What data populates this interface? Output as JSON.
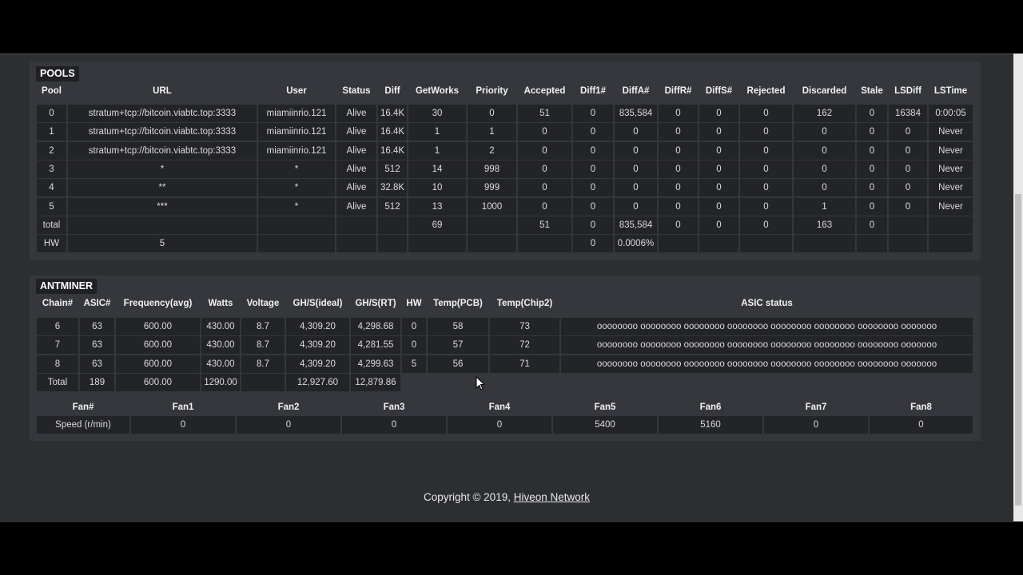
{
  "pools": {
    "title": "POOLS",
    "headers": [
      "Pool",
      "URL",
      "User",
      "Status",
      "Diff",
      "GetWorks",
      "Priority",
      "Accepted",
      "Diff1#",
      "DiffA#",
      "DiffR#",
      "DiffS#",
      "Rejected",
      "Discarded",
      "Stale",
      "LSDiff",
      "LSTime"
    ],
    "rows": [
      [
        "0",
        "stratum+tcp://bitcoin.viabtc.top:3333",
        "miamiinrio.121",
        "Alive",
        "16.4K",
        "30",
        "0",
        "51",
        "0",
        "835,584",
        "0",
        "0",
        "0",
        "162",
        "0",
        "16384",
        "0:00:05"
      ],
      [
        "1",
        "stratum+tcp://bitcoin.viabtc.top:3333",
        "miamiinrio.121",
        "Alive",
        "16.4K",
        "1",
        "1",
        "0",
        "0",
        "0",
        "0",
        "0",
        "0",
        "0",
        "0",
        "0",
        "Never"
      ],
      [
        "2",
        "stratum+tcp://bitcoin.viabtc.top:3333",
        "miamiinrio.121",
        "Alive",
        "16.4K",
        "1",
        "2",
        "0",
        "0",
        "0",
        "0",
        "0",
        "0",
        "0",
        "0",
        "0",
        "Never"
      ],
      [
        "3",
        "*",
        "*",
        "Alive",
        "512",
        "14",
        "998",
        "0",
        "0",
        "0",
        "0",
        "0",
        "0",
        "0",
        "0",
        "0",
        "Never"
      ],
      [
        "4",
        "**",
        "*",
        "Alive",
        "32.8K",
        "10",
        "999",
        "0",
        "0",
        "0",
        "0",
        "0",
        "0",
        "0",
        "0",
        "0",
        "Never"
      ],
      [
        "5",
        "***",
        "*",
        "Alive",
        "512",
        "13",
        "1000",
        "0",
        "0",
        "0",
        "0",
        "0",
        "0",
        "1",
        "0",
        "0",
        "Never"
      ],
      [
        "total",
        null,
        null,
        null,
        null,
        "69",
        null,
        "51",
        "0",
        "835,584",
        "0",
        "0",
        "0",
        "163",
        "0",
        null,
        null
      ],
      [
        "HW",
        "5",
        null,
        null,
        null,
        null,
        null,
        null,
        "0",
        "0.0006%",
        null,
        null,
        null,
        null,
        null,
        null,
        null
      ]
    ]
  },
  "antminer": {
    "title": "ANTMINER",
    "headers": [
      "Chain#",
      "ASIC#",
      "Frequency(avg)",
      "Watts",
      "Voltage",
      "GH/S(ideal)",
      "GH/S(RT)",
      "HW",
      "Temp(PCB)",
      "Temp(Chip2)",
      "ASIC status"
    ],
    "rows": [
      [
        "6",
        "63",
        "600.00",
        "430.00",
        "8.7",
        "4,309.20",
        "4,298.68",
        "0",
        "58",
        "73",
        "oooooooo oooooooo oooooooo oooooooo oooooooo oooooooo oooooooo ooooooo"
      ],
      [
        "7",
        "63",
        "600.00",
        "430.00",
        "8.7",
        "4,309.20",
        "4,281.55",
        "0",
        "57",
        "72",
        "oooooooo oooooooo oooooooo oooooooo oooooooo oooooooo oooooooo ooooooo"
      ],
      [
        "8",
        "63",
        "600.00",
        "430.00",
        "8.7",
        "4,309.20",
        "4,299.63",
        "5",
        "56",
        "71",
        "oooooooo oooooooo oooooooo oooooooo oooooooo oooooooo oooooooo ooooooo"
      ],
      [
        "Total",
        "189",
        "600.00",
        "1290.00",
        null,
        "12,927.60",
        "12,879.86"
      ]
    ],
    "fans": {
      "headers": [
        "Fan#",
        "Fan1",
        "Fan2",
        "Fan3",
        "Fan4",
        "Fan5",
        "Fan6",
        "Fan7",
        "Fan8"
      ],
      "rows": [
        [
          "Speed (r/min)",
          "0",
          "0",
          "0",
          "0",
          "5400",
          "5160",
          "0",
          "0"
        ]
      ]
    }
  },
  "footer": {
    "text": "Copyright © 2019,",
    "link": "Hiveon Network"
  }
}
